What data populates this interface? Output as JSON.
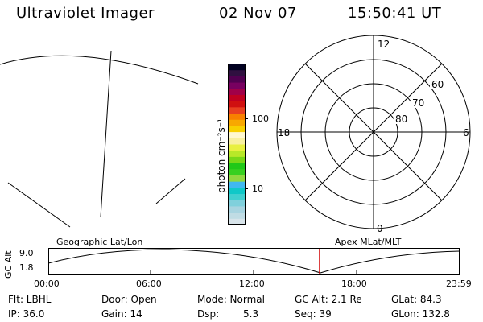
{
  "header": {
    "instrument": "Ultraviolet Imager",
    "date": "02 Nov 07",
    "time": "15:50:41 UT"
  },
  "colorbar": {
    "unit_label": "photon cm⁻²s⁻¹",
    "ticks": [
      "100",
      "10"
    ],
    "colors": [
      "#d8e4ea",
      "#c0dce4",
      "#a8d4e0",
      "#80d0dc",
      "#40d0d0",
      "#10c8c8",
      "#40b8f0",
      "#90d840",
      "#38d020",
      "#20c818",
      "#78d818",
      "#b8e828",
      "#e8f040",
      "#f8f0a0",
      "#fff8d0",
      "#f8d000",
      "#f8a800",
      "#f88000",
      "#e84020",
      "#d01010",
      "#c00020",
      "#a00048",
      "#780060",
      "#500050",
      "#301040",
      "#000020"
    ]
  },
  "polar_plot": {
    "clock_labels": [
      "12",
      "18",
      "6",
      "0"
    ],
    "latitude_labels": [
      "60",
      "70",
      "80"
    ]
  },
  "timeline": {
    "ylabel": "GC Alt",
    "yticks": [
      "9.0",
      "1.8"
    ],
    "left_title": "Geographic Lat/Lon",
    "right_title": "Apex MLat/MLT",
    "xticks": [
      "00:00",
      "06:00",
      "12:00",
      "18:00",
      "23:59"
    ],
    "current_time_color": "#d00000"
  },
  "info": {
    "filter": "Flt: LBHL",
    "ip": "IP: 36.0",
    "door": "Door: Open",
    "gain": "Gain: 14",
    "mode": "Mode: Normal",
    "dsp_label": "Dsp:",
    "dsp_value": "5.3",
    "gc_alt": "GC Alt: 2.1 Re",
    "seq": "Seq: 39",
    "glat": "GLat:  84.3",
    "glon": "GLon: 132.8"
  }
}
